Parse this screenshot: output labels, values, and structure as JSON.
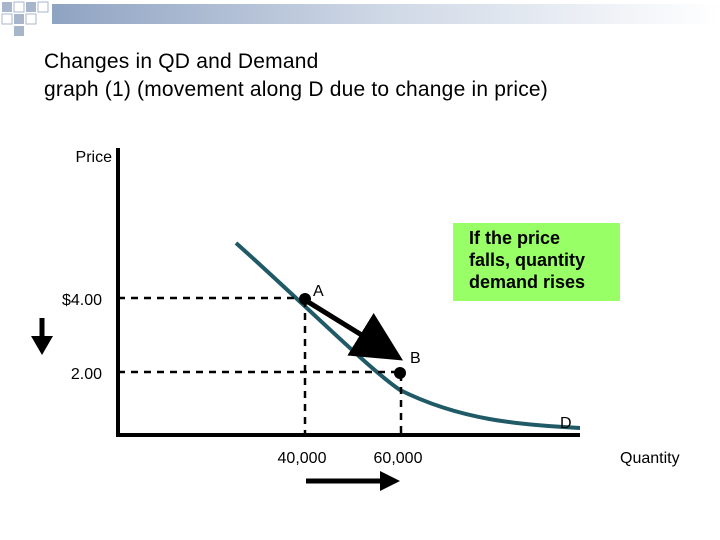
{
  "title": {
    "line1": "Changes in QD and Demand",
    "line2": "graph (1) (movement along D due to change in price)"
  },
  "axes": {
    "y_label": "Price",
    "x_label": "Quantity",
    "y_ticks": [
      "$4.00",
      "2.00"
    ],
    "x_ticks": [
      "40,000",
      "60,000"
    ]
  },
  "points": {
    "a": "A",
    "b": "B",
    "curve": "D"
  },
  "callout": {
    "text": "If the price falls, quantity demand rises",
    "color": "#99ff66"
  },
  "colors": {
    "curve": "#1f5a66",
    "axis": "#000000"
  }
}
